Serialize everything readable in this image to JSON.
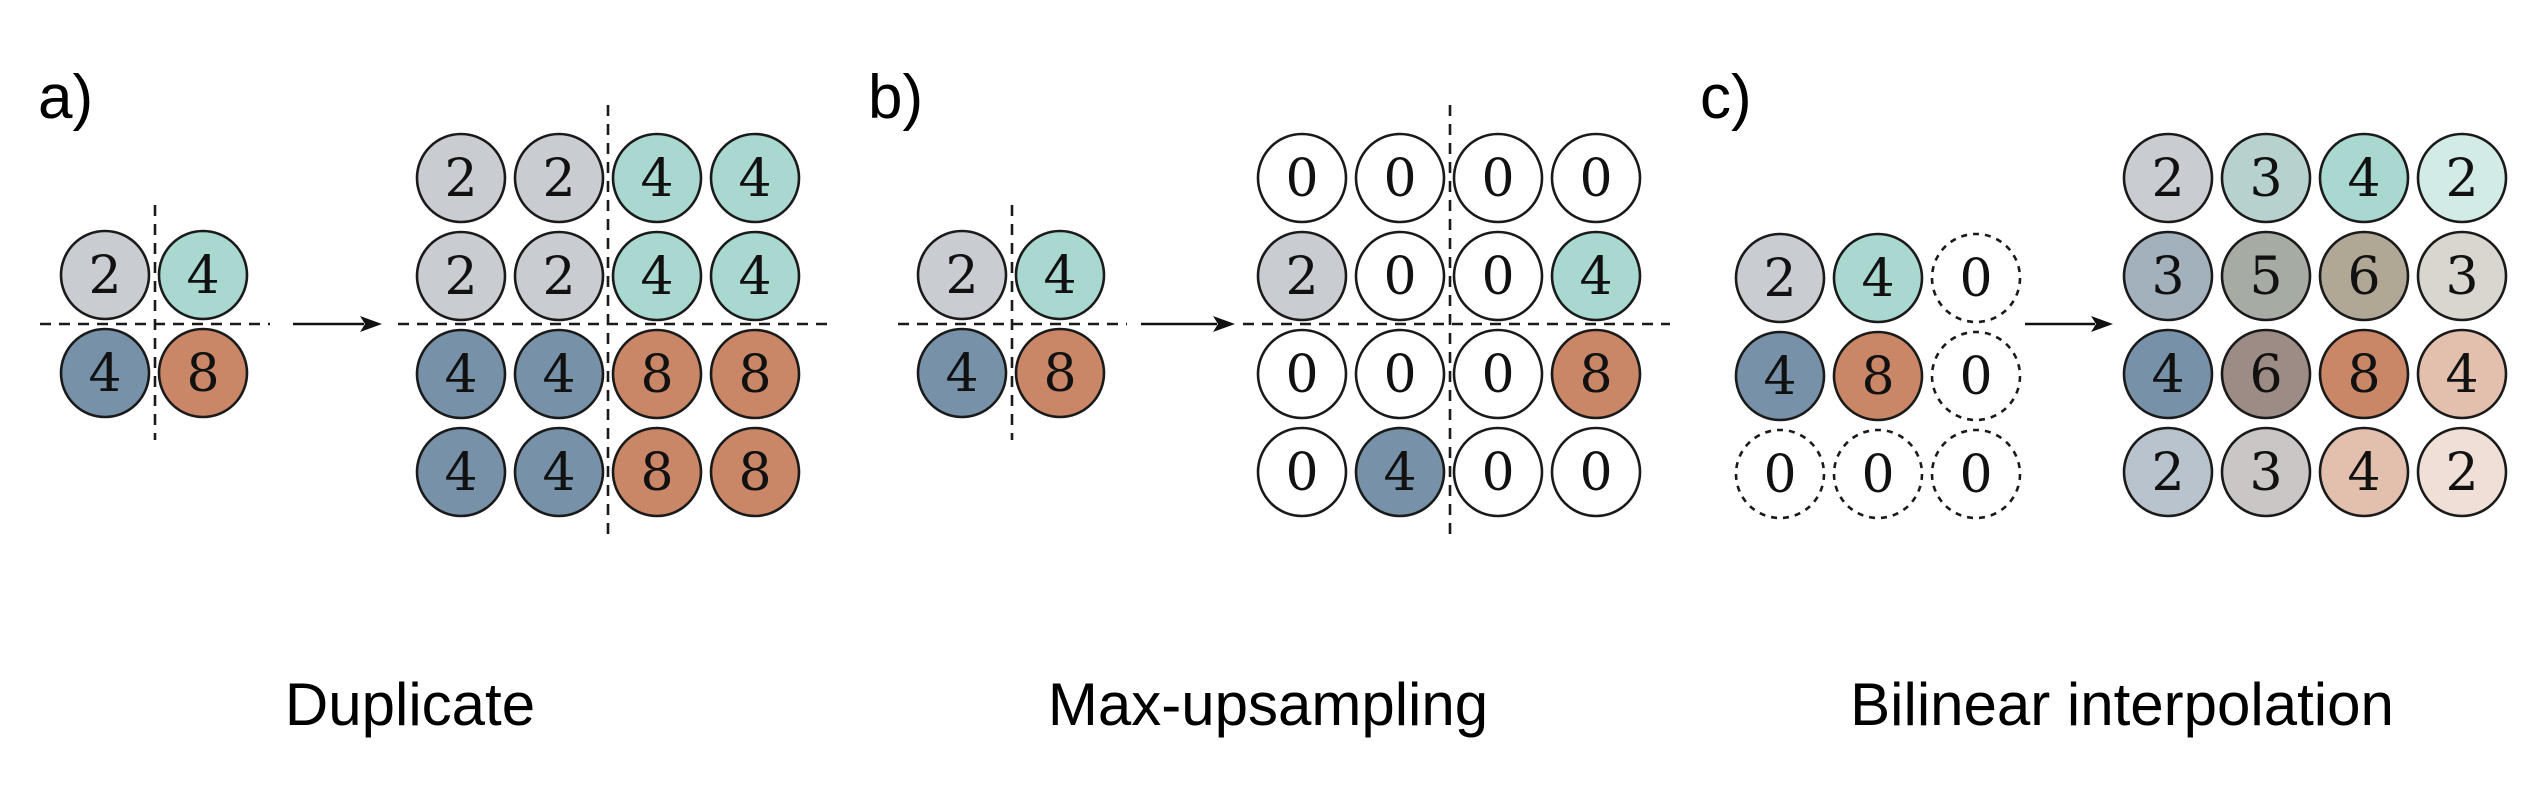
{
  "panels": [
    {
      "id": "a",
      "label": "a)",
      "caption": "Duplicate",
      "input": [
        [
          {
            "v": "2",
            "color": "#c9cdd1"
          },
          {
            "v": "4",
            "color": "#a9d8d1"
          }
        ],
        [
          {
            "v": "4",
            "color": "#7691a8"
          },
          {
            "v": "8",
            "color": "#c98767"
          }
        ]
      ],
      "output": [
        [
          {
            "v": "2",
            "color": "#c9cdd1"
          },
          {
            "v": "2",
            "color": "#c9cdd1"
          },
          {
            "v": "4",
            "color": "#a9d8d1"
          },
          {
            "v": "4",
            "color": "#a9d8d1"
          }
        ],
        [
          {
            "v": "2",
            "color": "#c9cdd1"
          },
          {
            "v": "2",
            "color": "#c9cdd1"
          },
          {
            "v": "4",
            "color": "#a9d8d1"
          },
          {
            "v": "4",
            "color": "#a9d8d1"
          }
        ],
        [
          {
            "v": "4",
            "color": "#7691a8"
          },
          {
            "v": "4",
            "color": "#7691a8"
          },
          {
            "v": "8",
            "color": "#c98767"
          },
          {
            "v": "8",
            "color": "#c98767"
          }
        ],
        [
          {
            "v": "4",
            "color": "#7691a8"
          },
          {
            "v": "4",
            "color": "#7691a8"
          },
          {
            "v": "8",
            "color": "#c98767"
          },
          {
            "v": "8",
            "color": "#c98767"
          }
        ]
      ]
    },
    {
      "id": "b",
      "label": "b)",
      "caption": "Max-upsampling",
      "input": [
        [
          {
            "v": "2",
            "color": "#c9cdd1"
          },
          {
            "v": "4",
            "color": "#a9d8d1"
          }
        ],
        [
          {
            "v": "4",
            "color": "#7691a8"
          },
          {
            "v": "8",
            "color": "#c98767"
          }
        ]
      ],
      "output": [
        [
          {
            "v": "0",
            "color": "#ffffff"
          },
          {
            "v": "0",
            "color": "#ffffff"
          },
          {
            "v": "0",
            "color": "#ffffff"
          },
          {
            "v": "0",
            "color": "#ffffff"
          }
        ],
        [
          {
            "v": "2",
            "color": "#c9cdd1"
          },
          {
            "v": "0",
            "color": "#ffffff"
          },
          {
            "v": "0",
            "color": "#ffffff"
          },
          {
            "v": "4",
            "color": "#a9d8d1"
          }
        ],
        [
          {
            "v": "0",
            "color": "#ffffff"
          },
          {
            "v": "0",
            "color": "#ffffff"
          },
          {
            "v": "0",
            "color": "#ffffff"
          },
          {
            "v": "8",
            "color": "#c98767"
          }
        ],
        [
          {
            "v": "0",
            "color": "#ffffff"
          },
          {
            "v": "4",
            "color": "#7691a8"
          },
          {
            "v": "0",
            "color": "#ffffff"
          },
          {
            "v": "0",
            "color": "#ffffff"
          }
        ]
      ]
    },
    {
      "id": "c",
      "label": "c)",
      "caption": "Bilinear interpolation",
      "input": [
        [
          {
            "v": "2",
            "color": "#c9cdd1"
          },
          {
            "v": "4",
            "color": "#a9d8d1"
          },
          {
            "v": "0",
            "color": "#ffffff",
            "dashed": true
          }
        ],
        [
          {
            "v": "4",
            "color": "#7691a8"
          },
          {
            "v": "8",
            "color": "#c98767"
          },
          {
            "v": "0",
            "color": "#ffffff",
            "dashed": true
          }
        ],
        [
          {
            "v": "0",
            "color": "#ffffff",
            "dashed": true
          },
          {
            "v": "0",
            "color": "#ffffff",
            "dashed": true
          },
          {
            "v": "0",
            "color": "#ffffff",
            "dashed": true
          }
        ]
      ],
      "output": [
        [
          {
            "v": "2",
            "color": "#c9cdd1"
          },
          {
            "v": "3",
            "color": "#b7d2ce"
          },
          {
            "v": "4",
            "color": "#a9d8d1"
          },
          {
            "v": "2",
            "color": "#d3ebe7"
          }
        ],
        [
          {
            "v": "3",
            "color": "#a3b1bd"
          },
          {
            "v": "5",
            "color": "#a6aba3"
          },
          {
            "v": "6",
            "color": "#b1a795"
          },
          {
            "v": "3",
            "color": "#d9d6cf"
          }
        ],
        [
          {
            "v": "4",
            "color": "#7691a8"
          },
          {
            "v": "6",
            "color": "#9d8c86"
          },
          {
            "v": "8",
            "color": "#c98767"
          },
          {
            "v": "4",
            "color": "#e3c0ae"
          }
        ],
        [
          {
            "v": "2",
            "color": "#b8c3cd"
          },
          {
            "v": "3",
            "color": "#cac6c5"
          },
          {
            "v": "4",
            "color": "#e3c0ae"
          },
          {
            "v": "2",
            "color": "#f0dfd6"
          }
        ]
      ]
    }
  ]
}
